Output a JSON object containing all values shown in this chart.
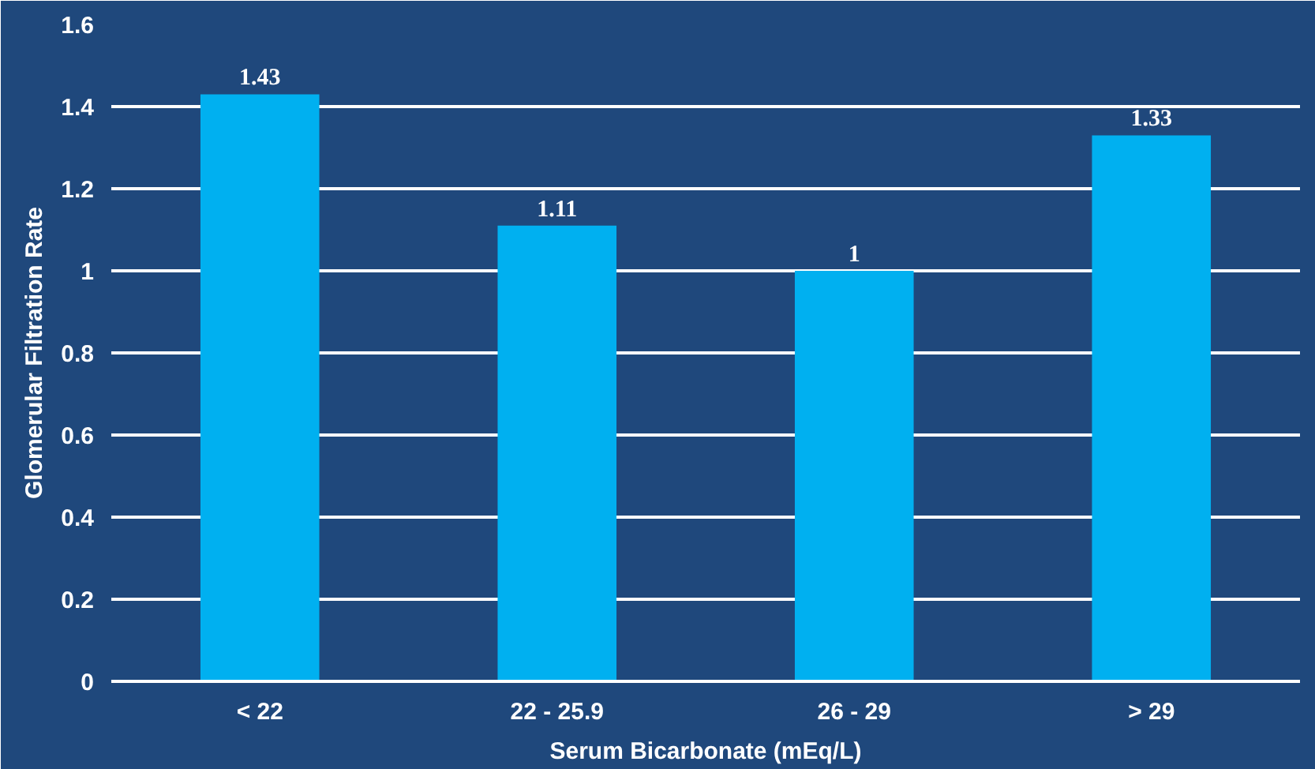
{
  "chart_data": {
    "type": "bar",
    "xlabel": "Serum Bicarbonate (mEq/L)",
    "ylabel": "Glomerular Filtration Rate",
    "categories": [
      "< 22",
      "22 - 25.9",
      "26 - 29",
      "> 29"
    ],
    "values": [
      1.43,
      1.11,
      1,
      1.33
    ],
    "color": "#00b0f0",
    "ylim": [
      0,
      1.6
    ],
    "yticks": [
      0,
      0.2,
      0.4,
      0.6,
      0.8,
      1,
      1.2,
      1.4,
      1.6
    ],
    "grid": "y",
    "data_labels": true
  }
}
